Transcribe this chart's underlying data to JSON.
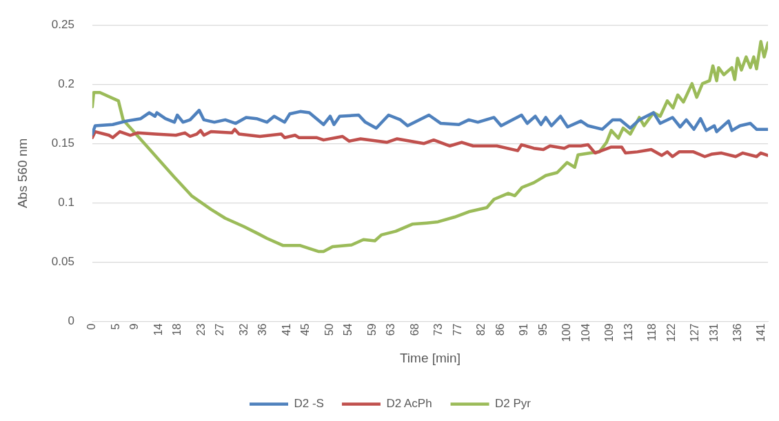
{
  "chart_data": {
    "type": "line",
    "xlabel": "Time [min]",
    "ylabel": "Abs 560 nm",
    "xlim": [
      0,
      142.3
    ],
    "xticks": [
      0,
      5,
      9,
      14,
      18,
      23,
      27,
      32,
      36,
      41,
      45,
      50,
      54,
      59,
      63,
      68,
      73,
      77,
      82,
      86,
      91,
      95,
      100,
      104,
      109,
      113,
      118,
      122,
      127,
      131,
      136,
      141
    ],
    "ylim": [
      0,
      0.25
    ],
    "yticks": [
      0,
      0.05,
      0.1,
      0.15,
      0.2,
      0.25
    ],
    "grid": "y",
    "legend": "bottom",
    "series": [
      {
        "name": "D2 -S",
        "color": "#4f81bd",
        "x": [
          0,
          0.6,
          4.3,
          7.2,
          10.2,
          12.0,
          13.2,
          13.6,
          15.4,
          17.3,
          17.9,
          19.1,
          20.6,
          22.5,
          23.5,
          25.7,
          28.0,
          30.2,
          32.4,
          34.6,
          36.8,
          38.3,
          40.5,
          41.6,
          43.8,
          45.7,
          48.7,
          50.1,
          50.9,
          52.1,
          56.1,
          57.5,
          59.8,
          62.4,
          64.9,
          66.4,
          70.9,
          73.4,
          77.2,
          79.3,
          81.2,
          84.6,
          86.1,
          90.4,
          91.6,
          93.3,
          94.5,
          95.5,
          96.7,
          98.6,
          100.1,
          102.9,
          104.4,
          107.4,
          109.6,
          111.2,
          113.3,
          115.2,
          118.2,
          119.6,
          122.2,
          123.8,
          125.1,
          126.7,
          128.1,
          129.3,
          131.0,
          131.5,
          134.0,
          134.7,
          136.4,
          138.6,
          139.9,
          142.3
        ],
        "values": [
          0.158,
          0.165,
          0.166,
          0.169,
          0.171,
          0.176,
          0.173,
          0.176,
          0.171,
          0.168,
          0.174,
          0.168,
          0.17,
          0.178,
          0.17,
          0.168,
          0.17,
          0.167,
          0.172,
          0.171,
          0.168,
          0.173,
          0.168,
          0.175,
          0.177,
          0.176,
          0.166,
          0.173,
          0.166,
          0.173,
          0.174,
          0.168,
          0.163,
          0.174,
          0.17,
          0.165,
          0.174,
          0.167,
          0.166,
          0.17,
          0.168,
          0.172,
          0.165,
          0.174,
          0.167,
          0.173,
          0.166,
          0.172,
          0.165,
          0.173,
          0.164,
          0.169,
          0.165,
          0.162,
          0.17,
          0.17,
          0.163,
          0.17,
          0.176,
          0.167,
          0.172,
          0.164,
          0.17,
          0.162,
          0.171,
          0.161,
          0.165,
          0.16,
          0.169,
          0.161,
          0.165,
          0.167,
          0.162,
          0.162
        ]
      },
      {
        "name": "D2 AcPh",
        "color": "#c0504d",
        "x": [
          0,
          0.6,
          3.5,
          4.3,
          5.8,
          8.0,
          9.5,
          13.2,
          17.6,
          19.5,
          20.6,
          22.0,
          22.8,
          23.5,
          25.0,
          29.4,
          30.0,
          30.9,
          35.3,
          39.8,
          40.5,
          42.7,
          43.5,
          47.2,
          48.7,
          52.7,
          54.1,
          56.5,
          62.0,
          64.2,
          69.8,
          71.9,
          75.3,
          77.8,
          80.2,
          85.2,
          89.6,
          90.4,
          93.0,
          95.0,
          96.4,
          99.4,
          100.4,
          102.9,
          104.4,
          105.9,
          109.3,
          111.5,
          112.3,
          114.8,
          117.7,
          119.9,
          121.1,
          122.2,
          123.6,
          126.6,
          129.0,
          130.4,
          132.5,
          135.5,
          137.0,
          139.9,
          140.8,
          142.3
        ],
        "values": [
          0.155,
          0.16,
          0.157,
          0.155,
          0.16,
          0.157,
          0.159,
          0.158,
          0.157,
          0.159,
          0.156,
          0.158,
          0.161,
          0.157,
          0.16,
          0.159,
          0.162,
          0.158,
          0.156,
          0.158,
          0.155,
          0.157,
          0.155,
          0.155,
          0.153,
          0.156,
          0.152,
          0.154,
          0.151,
          0.154,
          0.15,
          0.153,
          0.148,
          0.151,
          0.148,
          0.148,
          0.144,
          0.149,
          0.146,
          0.145,
          0.148,
          0.146,
          0.148,
          0.148,
          0.149,
          0.142,
          0.147,
          0.147,
          0.142,
          0.143,
          0.145,
          0.14,
          0.143,
          0.139,
          0.143,
          0.143,
          0.139,
          0.141,
          0.142,
          0.139,
          0.142,
          0.139,
          0.142,
          0.14
        ]
      },
      {
        "name": "D2 Pyr",
        "color": "#9bbb59",
        "x": [
          0,
          0.3,
          1.6,
          5.5,
          6.5,
          11.2,
          17.2,
          20.9,
          25.0,
          28.0,
          31.9,
          34.9,
          36.8,
          40.2,
          43.8,
          47.6,
          48.7,
          50.6,
          54.6,
          57.1,
          59.5,
          60.9,
          63.9,
          67.4,
          70.4,
          72.8,
          76.3,
          79.3,
          83.1,
          84.6,
          87.6,
          89.0,
          90.5,
          93.0,
          95.5,
          97.9,
          100.0,
          101.6,
          102.3,
          104.9,
          106.8,
          108.3,
          109.3,
          110.8,
          111.8,
          113.3,
          115.2,
          116.2,
          118.2,
          119.6,
          121.1,
          122.3,
          123.3,
          124.5,
          126.3,
          127.3,
          128.5,
          130.0,
          130.7,
          131.5,
          131.9,
          133.0,
          134.7,
          135.3,
          135.9,
          136.7,
          137.7,
          138.6,
          139.3,
          139.9,
          140.8,
          141.5,
          142.3
        ],
        "values": [
          0.181,
          0.193,
          0.193,
          0.186,
          0.17,
          0.149,
          0.122,
          0.106,
          0.0945,
          0.087,
          0.08,
          0.074,
          0.07,
          0.064,
          0.064,
          0.059,
          0.059,
          0.063,
          0.0645,
          0.069,
          0.068,
          0.073,
          0.076,
          0.082,
          0.083,
          0.084,
          0.088,
          0.0925,
          0.096,
          0.103,
          0.108,
          0.106,
          0.113,
          0.117,
          0.123,
          0.1255,
          0.134,
          0.13,
          0.1405,
          0.142,
          0.143,
          0.151,
          0.161,
          0.1545,
          0.163,
          0.158,
          0.172,
          0.165,
          0.176,
          0.173,
          0.186,
          0.18,
          0.191,
          0.185,
          0.2005,
          0.189,
          0.2005,
          0.203,
          0.2155,
          0.203,
          0.214,
          0.208,
          0.214,
          0.204,
          0.222,
          0.212,
          0.223,
          0.214,
          0.223,
          0.213,
          0.236,
          0.223,
          0.235
        ]
      }
    ]
  }
}
